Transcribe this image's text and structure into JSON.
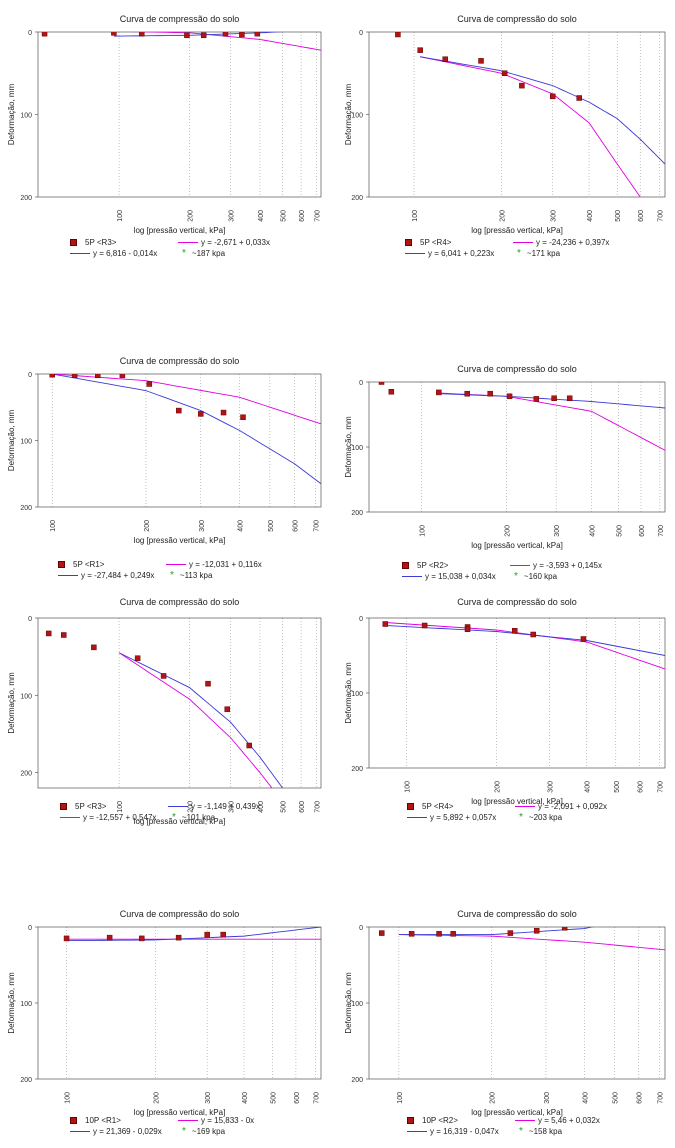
{
  "colors": {
    "points": "#b01515",
    "curve_blue": "#3a3ad6",
    "curve_magenta": "#e000e0",
    "marker_green": "#22a022",
    "grid": "#999999"
  },
  "chart_data": [
    {
      "type": "scatter",
      "title": "Curva de compressão do solo",
      "xlabel": "log [pressão vertical, kPa]",
      "ylabel": "Deformação, mm",
      "xscale": "log",
      "xticks": [
        100,
        200,
        300,
        400,
        500,
        600,
        700
      ],
      "yticks": [
        0,
        100,
        200
      ],
      "xlim": [
        45,
        730
      ],
      "ylim": [
        0,
        200
      ],
      "series": [
        {
          "name": "5P <R3>",
          "kind": "points",
          "x": [
            48,
            95,
            125,
            195,
            230,
            285,
            335,
            390
          ],
          "y": [
            2,
            1,
            2,
            4,
            4,
            2,
            3,
            2
          ]
        },
        {
          "name": "",
          "kind": "line",
          "color": "magenta",
          "x": [
            95,
            200,
            400,
            730
          ],
          "y": [
            -1,
            1,
            9,
            22
          ]
        },
        {
          "name": "",
          "kind": "line",
          "color": "blue",
          "x": [
            95,
            200,
            400,
            730
          ],
          "y": [
            5,
            4,
            1,
            -3
          ]
        }
      ],
      "legend": [
        {
          "symbol": "square",
          "text": "5P <R3>"
        },
        {
          "symbol": "line-magenta",
          "text": "y = -2,671 + 0,033x"
        },
        {
          "symbol": "line-blue",
          "text": "y = 6,816 - 0,014x"
        },
        {
          "symbol": "star",
          "text": "~187 kpa"
        }
      ]
    },
    {
      "type": "scatter",
      "title": "Curva de compressão do solo",
      "xlabel": "log [pressão vertical, kPa]",
      "ylabel": "Deformação, mm",
      "xscale": "log",
      "xticks": [
        100,
        200,
        300,
        400,
        500,
        600,
        700
      ],
      "yticks": [
        0,
        100,
        200
      ],
      "xlim": [
        70,
        730
      ],
      "ylim": [
        0,
        200
      ],
      "series": [
        {
          "name": "5P <R4>",
          "kind": "points",
          "x": [
            88,
            105,
            128,
            170,
            205,
            235,
            300,
            370
          ],
          "y": [
            3,
            22,
            33,
            35,
            50,
            65,
            78,
            80
          ]
        },
        {
          "name": "",
          "kind": "line",
          "color": "magenta",
          "x": [
            105,
            200,
            300,
            400,
            500,
            600
          ],
          "y": [
            30,
            50,
            75,
            110,
            160,
            200
          ]
        },
        {
          "name": "",
          "kind": "line",
          "color": "blue",
          "x": [
            105,
            200,
            300,
            400,
            500,
            600,
            730
          ],
          "y": [
            30,
            47,
            65,
            85,
            105,
            130,
            160
          ]
        }
      ],
      "legend": [
        {
          "symbol": "square",
          "text": "5P <R4>"
        },
        {
          "symbol": "line-magenta",
          "text": "y = -24,236 + 0,397x"
        },
        {
          "symbol": "line-blue",
          "text": "y = 6,041 + 0,223x"
        },
        {
          "symbol": "star",
          "text": "~171 kpa"
        }
      ]
    },
    {
      "type": "scatter",
      "title": "Curva de compressão do solo",
      "xlabel": "log [pressão vertical, kPa]",
      "ylabel": "Deformação, mm",
      "xscale": "log",
      "xticks": [
        100,
        200,
        300,
        400,
        500,
        600,
        700
      ],
      "yticks": [
        0,
        100,
        200
      ],
      "xlim": [
        90,
        730
      ],
      "ylim": [
        0,
        200
      ],
      "series": [
        {
          "name": "5P <R1>",
          "kind": "points",
          "x": [
            100,
            118,
            140,
            168,
            205,
            255,
            300,
            355,
            410
          ],
          "y": [
            1,
            2,
            2,
            2,
            15,
            55,
            60,
            58,
            65
          ]
        },
        {
          "name": "",
          "kind": "line",
          "color": "magenta",
          "x": [
            100,
            200,
            400,
            730
          ],
          "y": [
            0,
            10,
            35,
            75
          ]
        },
        {
          "name": "",
          "kind": "line",
          "color": "blue",
          "x": [
            100,
            200,
            300,
            400,
            600,
            730
          ],
          "y": [
            0,
            25,
            55,
            85,
            135,
            165
          ]
        }
      ],
      "legend": [
        {
          "symbol": "square",
          "text": "5P <R1>"
        },
        {
          "symbol": "line-magenta",
          "text": "y = -12,031 + 0,116x"
        },
        {
          "symbol": "line-blue",
          "text": "y = -27,484 + 0,249x"
        },
        {
          "symbol": "star",
          "text": "~113 kpa"
        }
      ]
    },
    {
      "type": "scatter",
      "title": "Curva de compressão do solo",
      "xlabel": "log [pressão vertical, kPa]",
      "ylabel": "Deformação, mm",
      "xscale": "log",
      "xticks": [
        100,
        200,
        300,
        400,
        500,
        600,
        700
      ],
      "yticks": [
        0,
        100,
        200
      ],
      "xlim": [
        65,
        730
      ],
      "ylim": [
        0,
        200
      ],
      "series": [
        {
          "name": "5P <R2>",
          "kind": "points",
          "x": [
            72,
            78,
            115,
            145,
            175,
            205,
            255,
            295,
            335
          ],
          "y": [
            0,
            15,
            16,
            18,
            18,
            22,
            26,
            25,
            25
          ]
        },
        {
          "name": "",
          "kind": "line",
          "color": "magenta",
          "x": [
            115,
            200,
            400,
            730
          ],
          "y": [
            17,
            22,
            45,
            105
          ]
        },
        {
          "name": "",
          "kind": "line",
          "color": "blue",
          "x": [
            115,
            200,
            400,
            730
          ],
          "y": [
            18,
            22,
            30,
            40
          ]
        }
      ],
      "legend": [
        {
          "symbol": "square",
          "text": "5P <R2>"
        },
        {
          "symbol": "line-magenta",
          "text": "y = -3,593 + 0,145x"
        },
        {
          "symbol": "line-blue",
          "text": "y = 15,038 + 0,034x"
        },
        {
          "symbol": "star",
          "text": "~160 kpa"
        }
      ]
    },
    {
      "type": "scatter",
      "title": "Curva de compressão do solo",
      "xlabel": "log [pressão vertical, kPa]",
      "ylabel": "Deformação, mm",
      "xscale": "log",
      "xticks": [
        100,
        200,
        300,
        400,
        500,
        600,
        700
      ],
      "yticks": [
        0,
        100,
        200
      ],
      "xlim": [
        45,
        730
      ],
      "ylim": [
        0,
        220
      ],
      "series": [
        {
          "name": "5P <R3>",
          "kind": "points",
          "x": [
            50,
            58,
            78,
            120,
            155,
            240,
            290,
            360
          ],
          "y": [
            20,
            22,
            38,
            52,
            75,
            85,
            118,
            165
          ]
        },
        {
          "name": "",
          "kind": "line",
          "color": "blue",
          "x": [
            100,
            200,
            300,
            400,
            500
          ],
          "y": [
            45,
            90,
            135,
            180,
            220
          ]
        },
        {
          "name": "",
          "kind": "line",
          "color": "magenta",
          "x": [
            100,
            200,
            300,
            400,
            450
          ],
          "y": [
            45,
            105,
            155,
            200,
            220
          ]
        }
      ],
      "legend": [
        {
          "symbol": "square",
          "text": "5P <R3>"
        },
        {
          "symbol": "line-blue",
          "text": "y = -1,149 + 0,439x"
        },
        {
          "symbol": "line-magenta",
          "text": "y = -12,557 + 0,547x"
        },
        {
          "symbol": "star",
          "text": "~101 kpa"
        }
      ]
    },
    {
      "type": "scatter",
      "title": "Curva de compressão do solo",
      "xlabel": "log [pressão vertical, kPa]",
      "ylabel": "Deformação, mm",
      "xscale": "log",
      "xticks": [
        100,
        200,
        300,
        400,
        500,
        600,
        700
      ],
      "yticks": [
        0,
        100,
        200
      ],
      "xlim": [
        75,
        730
      ],
      "ylim": [
        0,
        200
      ],
      "series": [
        {
          "name": "5P <R4>",
          "kind": "points",
          "x": [
            85,
            115,
            160,
            160,
            230,
            265,
            390
          ],
          "y": [
            8,
            10,
            12,
            15,
            17,
            22,
            28
          ]
        },
        {
          "name": "",
          "kind": "line",
          "color": "magenta",
          "x": [
            85,
            200,
            400,
            730
          ],
          "y": [
            6,
            16,
            32,
            68
          ]
        },
        {
          "name": "",
          "kind": "line",
          "color": "blue",
          "x": [
            85,
            200,
            400,
            730
          ],
          "y": [
            10,
            18,
            30,
            50
          ]
        }
      ],
      "legend": [
        {
          "symbol": "square",
          "text": "5P <R4>"
        },
        {
          "symbol": "line-magenta",
          "text": "y = -2,091 + 0,092x"
        },
        {
          "symbol": "line-blue",
          "text": "y = 5,892 + 0,057x"
        },
        {
          "symbol": "star",
          "text": "~203 kpa"
        }
      ]
    },
    {
      "type": "scatter",
      "title": "Curva de compressão do solo",
      "xlabel": "log [pressão vertical, kPa]",
      "ylabel": "Deformação, mm",
      "xscale": "log",
      "xticks": [
        100,
        200,
        300,
        400,
        500,
        600,
        700
      ],
      "yticks": [
        0,
        100,
        200
      ],
      "xlim": [
        80,
        730
      ],
      "ylim": [
        0,
        200
      ],
      "series": [
        {
          "name": "10P <R1>",
          "kind": "points",
          "x": [
            100,
            140,
            180,
            240,
            300,
            340
          ],
          "y": [
            15,
            14,
            15,
            14,
            10,
            10
          ]
        },
        {
          "name": "",
          "kind": "line",
          "color": "magenta",
          "x": [
            100,
            730
          ],
          "y": [
            16,
            16
          ]
        },
        {
          "name": "",
          "kind": "line",
          "color": "blue",
          "x": [
            100,
            200,
            400,
            730
          ],
          "y": [
            18,
            17,
            12,
            0
          ]
        }
      ],
      "legend": [
        {
          "symbol": "square",
          "text": "10P <R1>"
        },
        {
          "symbol": "line-magenta",
          "text": "y = 15,833 - 0x"
        },
        {
          "symbol": "line-blue",
          "text": "y = 21,369 - 0,029x"
        },
        {
          "symbol": "star",
          "text": "~169 kpa"
        }
      ]
    },
    {
      "type": "scatter",
      "title": "Curva de compressão do solo",
      "xlabel": "log [pressão vertical, kPa]",
      "ylabel": "Deformação, mm",
      "xscale": "log",
      "xticks": [
        100,
        200,
        300,
        400,
        500,
        600,
        700
      ],
      "yticks": [
        0,
        100,
        200
      ],
      "xlim": [
        80,
        730
      ],
      "ylim": [
        0,
        200
      ],
      "series": [
        {
          "name": "10P <R2>",
          "kind": "points",
          "x": [
            88,
            110,
            135,
            150,
            230,
            280,
            345
          ],
          "y": [
            8,
            9,
            9,
            9,
            8,
            5,
            1
          ]
        },
        {
          "name": "",
          "kind": "line",
          "color": "magenta",
          "x": [
            100,
            200,
            400,
            730
          ],
          "y": [
            10,
            12,
            20,
            30
          ]
        },
        {
          "name": "",
          "kind": "line",
          "color": "blue",
          "x": [
            100,
            200,
            400,
            730
          ],
          "y": [
            10,
            10,
            2,
            -20
          ]
        }
      ],
      "legend": [
        {
          "symbol": "square",
          "text": "10P <R2>"
        },
        {
          "symbol": "line-magenta",
          "text": "y = 5,46 + 0,032x"
        },
        {
          "symbol": "line-blue",
          "text": "y = 16,319 - 0,047x"
        },
        {
          "symbol": "star",
          "text": "~158 kpa"
        }
      ]
    }
  ]
}
